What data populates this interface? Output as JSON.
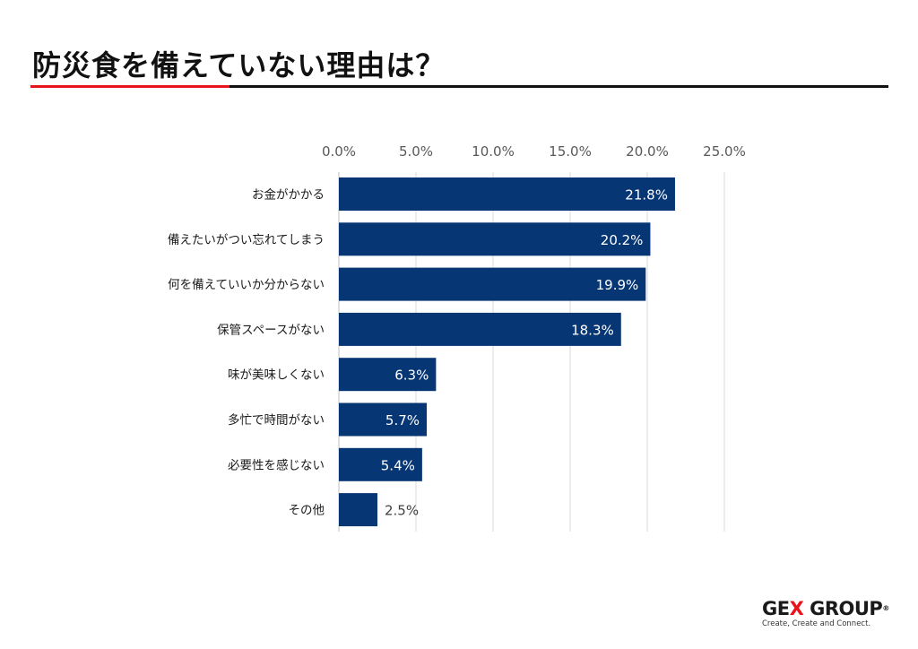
{
  "title": "防災食を備えていない理由は？",
  "colors": {
    "bar": "#073675",
    "accent_red": "#e8141c",
    "grid": "#d9d9d9"
  },
  "chart_data": {
    "type": "bar",
    "orientation": "horizontal",
    "categories": [
      "お金がかかる",
      "備えたいがつい忘れてしまう",
      "何を備えていいか分からない",
      "保管スペースがない",
      "味が美味しくない",
      "多忙で時間がない",
      "必要性を感じない",
      "その他"
    ],
    "values": [
      21.8,
      20.2,
      19.9,
      18.3,
      6.3,
      5.7,
      5.4,
      2.5
    ],
    "data_labels": [
      "21.8%",
      "20.2%",
      "19.9%",
      "18.3%",
      "6.3%",
      "5.7%",
      "5.4%",
      "2.5%"
    ],
    "tick_values": [
      0,
      5,
      10,
      15,
      20,
      25
    ],
    "tick_labels": [
      "0.0%",
      "5.0%",
      "10.0%",
      "15.0%",
      "20.0%",
      "25.0%"
    ],
    "xlim": [
      0,
      25
    ],
    "axis_position": "top",
    "grid": true,
    "legend": false
  },
  "logo": {
    "brand_prefix": "GE",
    "brand_x": "X",
    "brand_suffix": " GROUP",
    "registered": "®",
    "tagline": "Create, Create and Connect."
  }
}
